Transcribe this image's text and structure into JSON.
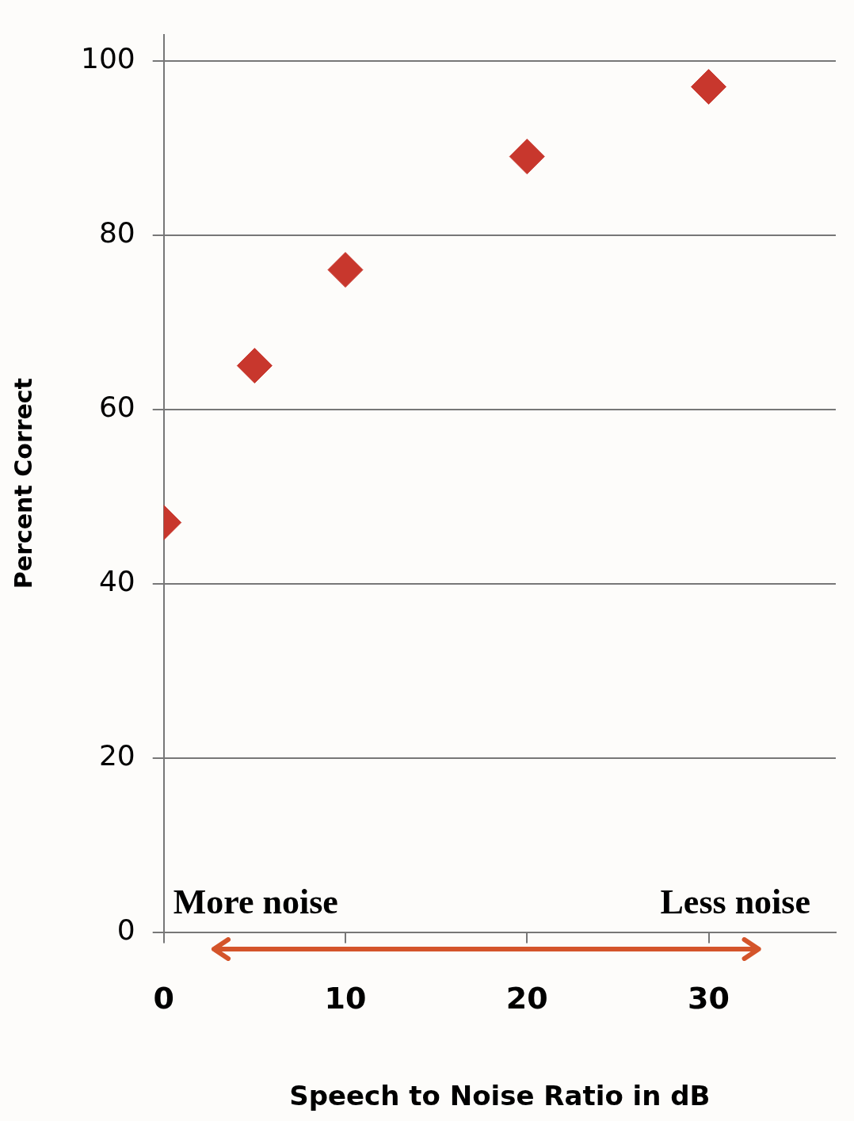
{
  "chart_data": {
    "type": "scatter",
    "xlabel": "Speech to Noise Ratio in dB",
    "ylabel": "Percent Correct",
    "x": [
      0,
      5,
      10,
      20,
      30
    ],
    "values": [
      47,
      65,
      76,
      89,
      97
    ],
    "color": "#c8372d",
    "marker": "diamond",
    "xlim": [
      0,
      37
    ],
    "xticks": [
      0,
      10,
      20,
      30
    ],
    "ylim": [
      0,
      103
    ],
    "yticks": [
      0,
      20,
      40,
      60,
      80,
      100
    ],
    "grid": "y",
    "legend": false,
    "annotations": [
      "More noise",
      "Less noise"
    ]
  }
}
